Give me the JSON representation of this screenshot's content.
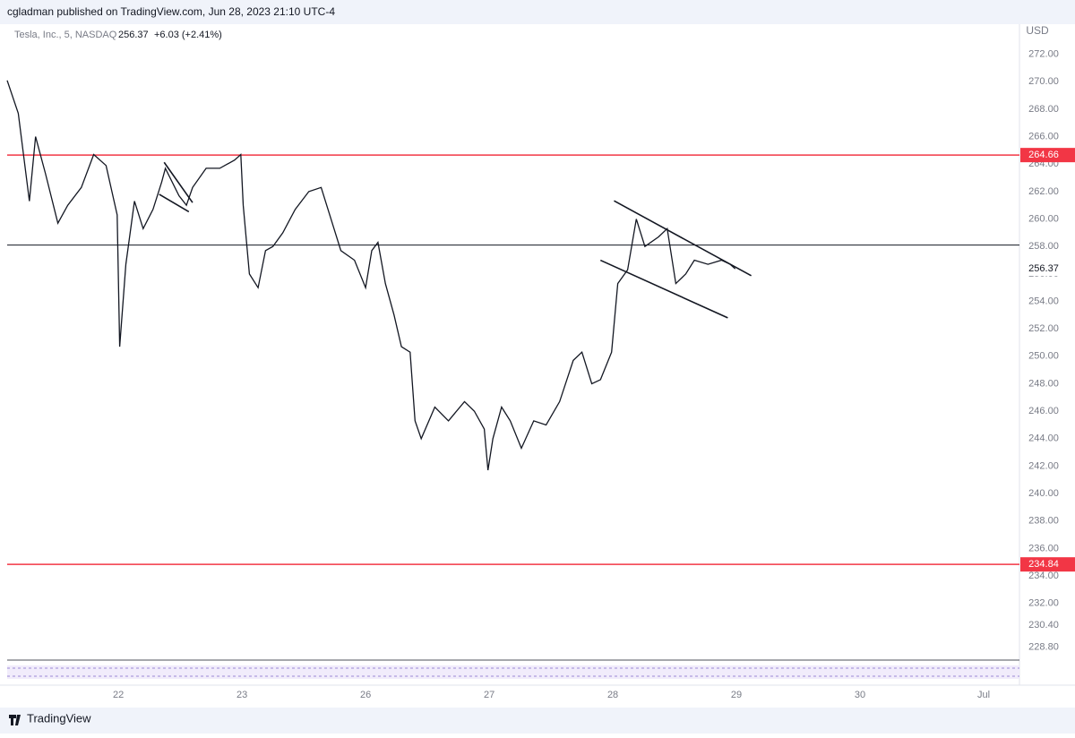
{
  "header": {
    "publisher": "cgladman published on TradingView.com, Jun 28, 2023 21:10 UTC-4",
    "symbol": "Tesla, Inc., 5, NASDAQ",
    "price": "256.37",
    "change": "+6.03 (+2.41%)",
    "currency": "USD"
  },
  "footer": "TradingView",
  "chart_data": {
    "type": "line",
    "color": "#131722",
    "x": [
      0.1,
      0.19,
      0.28,
      0.33,
      0.41,
      0.51,
      0.59,
      0.7,
      0.8,
      0.9,
      0.99,
      1.01,
      1.06,
      1.13,
      1.2,
      1.28,
      1.35,
      1.38,
      1.49,
      1.55,
      1.6,
      1.71,
      1.82,
      1.94,
      1.99,
      2.01,
      2.06,
      2.13,
      2.19,
      2.25,
      2.33,
      2.43,
      2.54,
      2.64,
      2.72,
      2.8,
      2.91,
      3.0,
      3.05,
      3.1,
      3.16,
      3.23,
      3.29,
      3.36,
      3.4,
      3.45,
      3.56,
      3.67,
      3.8,
      3.88,
      3.96,
      3.99,
      4.03,
      4.1,
      4.17,
      4.26,
      4.36,
      4.46,
      4.57,
      4.68,
      4.75,
      4.83,
      4.9,
      4.99,
      5.04,
      5.12,
      5.19,
      5.26,
      5.37,
      5.44,
      5.51,
      5.59,
      5.66,
      5.77,
      5.88,
      5.95,
      5.99
    ],
    "values": [
      270.1,
      267.7,
      261.3,
      266,
      263.3,
      259.7,
      261,
      262.3,
      264.7,
      263.9,
      260.3,
      250.7,
      256.7,
      261.3,
      259.3,
      260.7,
      262.7,
      263.7,
      261.7,
      261,
      262.3,
      263.7,
      263.7,
      264.3,
      264.7,
      261,
      256,
      255,
      257.7,
      258,
      259,
      260.7,
      262,
      262.3,
      260,
      257.7,
      257,
      255,
      257.7,
      258.3,
      255.3,
      253,
      250.7,
      250.3,
      245.3,
      244,
      246.3,
      245.3,
      246.7,
      246,
      244.7,
      241.7,
      244,
      246.3,
      245.3,
      243.3,
      245.3,
      245,
      246.7,
      249.7,
      250.3,
      248,
      248.3,
      250.3,
      255.3,
      256.3,
      260,
      258,
      258.7,
      259.3,
      255.3,
      256,
      257,
      256.7,
      257,
      256.7,
      256.37
    ],
    "xlim": [
      0.1,
      8.29
    ],
    "xticks": [
      {
        "value": 1,
        "label": "22"
      },
      {
        "value": 2,
        "label": "23"
      },
      {
        "value": 3,
        "label": "26"
      },
      {
        "value": 4,
        "label": "27"
      },
      {
        "value": 5,
        "label": "28"
      },
      {
        "value": 6,
        "label": "29"
      },
      {
        "value": 7,
        "label": "30"
      },
      {
        "value": 8,
        "label": "Jul"
      }
    ],
    "ylim": [
      227.87,
      274.13
    ],
    "yticks": [
      {
        "value": 272,
        "label": "272.00"
      },
      {
        "value": 270,
        "label": "270.00"
      },
      {
        "value": 268,
        "label": "268.00"
      },
      {
        "value": 266,
        "label": "266.00"
      },
      {
        "value": 264,
        "label": "264.00"
      },
      {
        "value": 262,
        "label": "262.00"
      },
      {
        "value": 260,
        "label": "260.00"
      },
      {
        "value": 258,
        "label": "258.00"
      },
      {
        "value": 256,
        "label": "256.00"
      },
      {
        "value": 254,
        "label": "254.00"
      },
      {
        "value": 252,
        "label": "252.00"
      },
      {
        "value": 250,
        "label": "250.00"
      },
      {
        "value": 248,
        "label": "248.00"
      },
      {
        "value": 246,
        "label": "246.00"
      },
      {
        "value": 244,
        "label": "244.00"
      },
      {
        "value": 242,
        "label": "242.00"
      },
      {
        "value": 240,
        "label": "240.00"
      },
      {
        "value": 238,
        "label": "238.00"
      },
      {
        "value": 236,
        "label": "236.00"
      },
      {
        "value": 234,
        "label": "234.00"
      },
      {
        "value": 232,
        "label": "232.00"
      },
      {
        "value": 230.4,
        "label": "230.40"
      },
      {
        "value": 228.8,
        "label": "228.80"
      }
    ],
    "hlines": [
      {
        "value": 264.66,
        "label": "264.66",
        "color": "#f23645"
      },
      {
        "value": 234.84,
        "label": "234.84",
        "color": "#f23645"
      },
      {
        "value": 258.1,
        "color": "#131722"
      }
    ],
    "price_marker": {
      "value": 256.37,
      "label": "256.37"
    },
    "trendlines": [
      {
        "x": [
          5.01,
          6.12
        ],
        "y": [
          261.33,
          255.87
        ]
      },
      {
        "x": [
          4.9,
          5.93
        ],
        "y": [
          257.0,
          252.8
        ]
      },
      {
        "x": [
          1.37,
          1.6
        ],
        "y": [
          264.13,
          261.2
        ]
      },
      {
        "x": [
          1.33,
          1.57
        ],
        "y": [
          261.8,
          260.53
        ]
      }
    ]
  }
}
